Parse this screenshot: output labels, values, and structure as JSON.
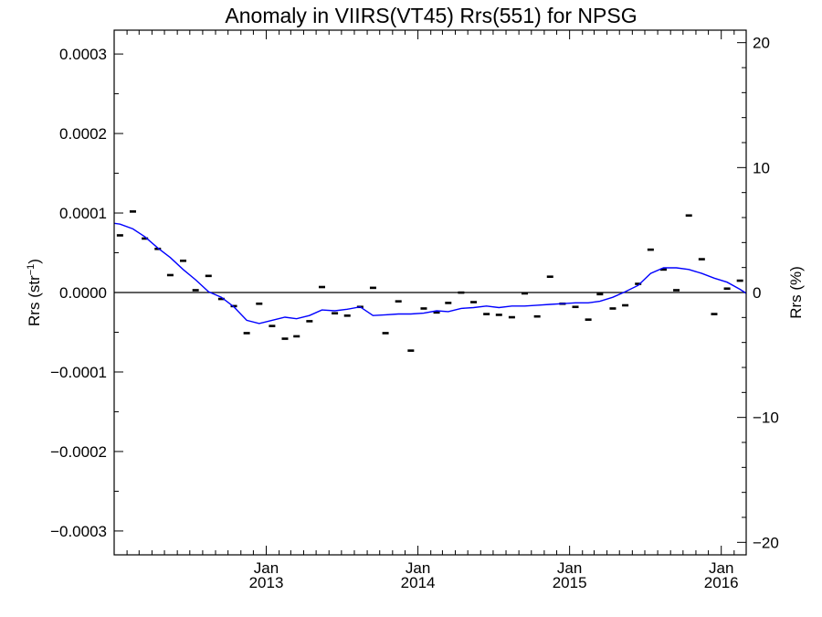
{
  "chart_data": {
    "type": "scatter",
    "title": "Anomaly in VIIRS(VT45) Rrs(551) for NPSG",
    "ylabel_left_main": "Rrs (str",
    "ylabel_left_sup": "−1",
    "ylabel_left_end": ")",
    "ylabel_right": "Rrs (%)",
    "xlim": [
      "2012-01-01",
      "2016-03-01"
    ],
    "ylim": [
      -0.00033,
      0.00033
    ],
    "ylim_right": [
      -21,
      21
    ],
    "y_ticks": [
      {
        "value": 0.0003,
        "label": "0.0003"
      },
      {
        "value": 0.0002,
        "label": "0.0002"
      },
      {
        "value": 0.0001,
        "label": "0.0001"
      },
      {
        "value": 0.0,
        "label": "0.0000"
      },
      {
        "value": -0.0001,
        "label": "−0.0001"
      },
      {
        "value": -0.0002,
        "label": "−0.0002"
      },
      {
        "value": -0.0003,
        "label": "−0.0003"
      }
    ],
    "y_right_ticks": [
      {
        "value": 20,
        "label": "20"
      },
      {
        "value": 10,
        "label": "10"
      },
      {
        "value": 0,
        "label": "0"
      },
      {
        "value": -10,
        "label": "−10"
      },
      {
        "value": -20,
        "label": "−20"
      }
    ],
    "x_ticks": [
      {
        "date": "2013-01-01",
        "month": "Jan",
        "year": "2013"
      },
      {
        "date": "2014-01-01",
        "month": "Jan",
        "year": "2014"
      },
      {
        "date": "2015-01-01",
        "month": "Jan",
        "year": "2015"
      },
      {
        "date": "2016-01-01",
        "month": "Jan",
        "year": "2016"
      }
    ],
    "zero_line": true,
    "series": [
      {
        "kind": "monthly_anomaly_markers",
        "color": "#000000",
        "points": [
          {
            "x": "2012-01-15",
            "y": 7.2e-05
          },
          {
            "x": "2012-02-15",
            "y": 0.000102
          },
          {
            "x": "2012-03-15",
            "y": 6.8e-05
          },
          {
            "x": "2012-04-15",
            "y": 5.5e-05
          },
          {
            "x": "2012-05-15",
            "y": 2.2e-05
          },
          {
            "x": "2012-06-15",
            "y": 4e-05
          },
          {
            "x": "2012-07-15",
            "y": 3e-06
          },
          {
            "x": "2012-08-15",
            "y": 2.1e-05
          },
          {
            "x": "2012-09-15",
            "y": -8e-06
          },
          {
            "x": "2012-10-15",
            "y": -1.7e-05
          },
          {
            "x": "2012-11-15",
            "y": -5.1e-05
          },
          {
            "x": "2012-12-15",
            "y": -1.4e-05
          },
          {
            "x": "2013-01-15",
            "y": -4.2e-05
          },
          {
            "x": "2013-02-15",
            "y": -5.8e-05
          },
          {
            "x": "2013-03-15",
            "y": -5.5e-05
          },
          {
            "x": "2013-04-15",
            "y": -3.6e-05
          },
          {
            "x": "2013-05-15",
            "y": 7e-06
          },
          {
            "x": "2013-06-15",
            "y": -2.6e-05
          },
          {
            "x": "2013-07-15",
            "y": -2.9e-05
          },
          {
            "x": "2013-08-15",
            "y": -1.8e-05
          },
          {
            "x": "2013-09-15",
            "y": 6e-06
          },
          {
            "x": "2013-10-15",
            "y": -5.1e-05
          },
          {
            "x": "2013-11-15",
            "y": -1.1e-05
          },
          {
            "x": "2013-12-15",
            "y": -7.3e-05
          },
          {
            "x": "2014-01-15",
            "y": -2e-05
          },
          {
            "x": "2014-02-15",
            "y": -2.5e-05
          },
          {
            "x": "2014-03-15",
            "y": -1.3e-05
          },
          {
            "x": "2014-04-15",
            "y": 0.0
          },
          {
            "x": "2014-05-15",
            "y": -1.2e-05
          },
          {
            "x": "2014-06-15",
            "y": -2.7e-05
          },
          {
            "x": "2014-07-15",
            "y": -2.8e-05
          },
          {
            "x": "2014-08-15",
            "y": -3.1e-05
          },
          {
            "x": "2014-09-15",
            "y": -1e-06
          },
          {
            "x": "2014-10-15",
            "y": -3e-05
          },
          {
            "x": "2014-11-15",
            "y": 2e-05
          },
          {
            "x": "2014-12-15",
            "y": -1.4e-05
          },
          {
            "x": "2015-01-15",
            "y": -1.8e-05
          },
          {
            "x": "2015-02-15",
            "y": -3.4e-05
          },
          {
            "x": "2015-03-15",
            "y": -2e-06
          },
          {
            "x": "2015-04-15",
            "y": -2e-05
          },
          {
            "x": "2015-05-15",
            "y": -1.6e-05
          },
          {
            "x": "2015-06-15",
            "y": 1.1e-05
          },
          {
            "x": "2015-07-15",
            "y": 5.4e-05
          },
          {
            "x": "2015-08-15",
            "y": 2.9e-05
          },
          {
            "x": "2015-09-15",
            "y": 3e-06
          },
          {
            "x": "2015-10-15",
            "y": 9.7e-05
          },
          {
            "x": "2015-11-15",
            "y": 4.2e-05
          },
          {
            "x": "2015-12-15",
            "y": -2.7e-05
          },
          {
            "x": "2016-01-15",
            "y": 5e-06
          },
          {
            "x": "2016-02-15",
            "y": 1.5e-05
          }
        ]
      },
      {
        "kind": "smoothed_line",
        "color": "#0000ff",
        "points": [
          {
            "x": "2012-01-01",
            "y": 8.7e-05
          },
          {
            "x": "2012-01-15",
            "y": 8.6e-05
          },
          {
            "x": "2012-02-15",
            "y": 8e-05
          },
          {
            "x": "2012-03-15",
            "y": 7e-05
          },
          {
            "x": "2012-04-15",
            "y": 5.6e-05
          },
          {
            "x": "2012-05-15",
            "y": 4.4e-05
          },
          {
            "x": "2012-06-15",
            "y": 2.9e-05
          },
          {
            "x": "2012-07-15",
            "y": 1.6e-05
          },
          {
            "x": "2012-08-15",
            "y": 1e-06
          },
          {
            "x": "2012-09-15",
            "y": -6e-06
          },
          {
            "x": "2012-10-15",
            "y": -1.8e-05
          },
          {
            "x": "2012-11-15",
            "y": -3.5e-05
          },
          {
            "x": "2012-12-15",
            "y": -3.9e-05
          },
          {
            "x": "2013-01-15",
            "y": -3.5e-05
          },
          {
            "x": "2013-02-15",
            "y": -3.1e-05
          },
          {
            "x": "2013-03-15",
            "y": -3.3e-05
          },
          {
            "x": "2013-04-15",
            "y": -2.9e-05
          },
          {
            "x": "2013-05-15",
            "y": -2.2e-05
          },
          {
            "x": "2013-06-15",
            "y": -2.3e-05
          },
          {
            "x": "2013-07-15",
            "y": -2.1e-05
          },
          {
            "x": "2013-08-15",
            "y": -1.8e-05
          },
          {
            "x": "2013-09-15",
            "y": -2.9e-05
          },
          {
            "x": "2013-10-15",
            "y": -2.8e-05
          },
          {
            "x": "2013-11-15",
            "y": -2.7e-05
          },
          {
            "x": "2013-12-15",
            "y": -2.7e-05
          },
          {
            "x": "2014-01-15",
            "y": -2.6e-05
          },
          {
            "x": "2014-02-15",
            "y": -2.3e-05
          },
          {
            "x": "2014-03-15",
            "y": -2.4e-05
          },
          {
            "x": "2014-04-15",
            "y": -2e-05
          },
          {
            "x": "2014-05-15",
            "y": -1.9e-05
          },
          {
            "x": "2014-06-15",
            "y": -1.7e-05
          },
          {
            "x": "2014-07-15",
            "y": -1.9e-05
          },
          {
            "x": "2014-08-15",
            "y": -1.7e-05
          },
          {
            "x": "2014-09-15",
            "y": -1.7e-05
          },
          {
            "x": "2014-10-15",
            "y": -1.6e-05
          },
          {
            "x": "2014-11-15",
            "y": -1.5e-05
          },
          {
            "x": "2014-12-15",
            "y": -1.4e-05
          },
          {
            "x": "2015-01-15",
            "y": -1.3e-05
          },
          {
            "x": "2015-02-15",
            "y": -1.3e-05
          },
          {
            "x": "2015-03-15",
            "y": -1.1e-05
          },
          {
            "x": "2015-04-15",
            "y": -6e-06
          },
          {
            "x": "2015-05-15",
            "y": 1e-06
          },
          {
            "x": "2015-06-15",
            "y": 9e-06
          },
          {
            "x": "2015-07-15",
            "y": 2.4e-05
          },
          {
            "x": "2015-08-15",
            "y": 3.1e-05
          },
          {
            "x": "2015-09-15",
            "y": 3.1e-05
          },
          {
            "x": "2015-10-15",
            "y": 2.9e-05
          },
          {
            "x": "2015-11-15",
            "y": 2.4e-05
          },
          {
            "x": "2015-12-15",
            "y": 1.8e-05
          },
          {
            "x": "2016-01-15",
            "y": 1.3e-05
          },
          {
            "x": "2016-02-15",
            "y": 4e-06
          },
          {
            "x": "2016-03-01",
            "y": -1e-06
          }
        ]
      }
    ]
  }
}
